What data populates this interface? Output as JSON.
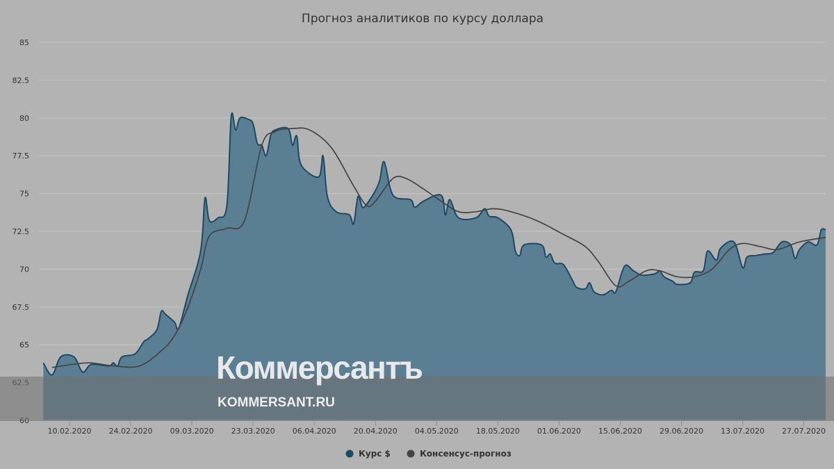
{
  "watermark": {
    "name": "Коммерсантъ",
    "url": "KOMMERSANT.RU"
  },
  "chart_data": {
    "type": "area",
    "title": "Прогноз аналитиков по курсу доллара",
    "xlabel": "",
    "ylabel": "",
    "ylim": [
      60,
      85
    ],
    "y_ticks": [
      "60",
      "62.5",
      "65",
      "67.5",
      "70",
      "72.5",
      "75",
      "77.5",
      "80",
      "82.5",
      "85"
    ],
    "x_range": [
      "2020-02-03",
      "2020-08-01"
    ],
    "x_ticks": [
      "10.02.2020",
      "24.02.2020",
      "09.03.2020",
      "23.03.2020",
      "06.04.2020",
      "20.04.2020",
      "04.05.2020",
      "18.05.2020",
      "01.06.2020",
      "15.06.2020",
      "29.06.2020",
      "13.07.2020",
      "27.07.2020"
    ],
    "grid": true,
    "legend_position": "bottom",
    "colors": {
      "rate_line": "#1b4a66",
      "rate_fill": "#557b90",
      "forecast_line": "#444444",
      "background": "#b3b3b3",
      "grid": "#c6c6c6",
      "watermark_band": "#6f6f6f"
    },
    "series": [
      {
        "name": "Курс $",
        "type": "area",
        "points": [
          [
            "2020-02-04",
            63.8
          ],
          [
            "2020-02-06",
            63.0
          ],
          [
            "2020-02-08",
            64.2
          ],
          [
            "2020-02-11",
            64.2
          ],
          [
            "2020-02-13",
            63.2
          ],
          [
            "2020-02-15",
            63.7
          ],
          [
            "2020-02-19",
            63.6
          ],
          [
            "2020-02-20",
            63.8
          ],
          [
            "2020-02-21",
            63.6
          ],
          [
            "2020-02-22",
            64.2
          ],
          [
            "2020-02-25",
            64.4
          ],
          [
            "2020-02-27",
            65.2
          ],
          [
            "2020-02-28",
            65.4
          ],
          [
            "2020-03-01",
            66.0
          ],
          [
            "2020-03-02",
            67.2
          ],
          [
            "2020-03-03",
            67.0
          ],
          [
            "2020-03-05",
            66.5
          ],
          [
            "2020-03-06",
            66.1
          ],
          [
            "2020-03-08",
            68.2
          ],
          [
            "2020-03-11",
            71.2
          ],
          [
            "2020-03-12",
            74.7
          ],
          [
            "2020-03-13",
            73.2
          ],
          [
            "2020-03-15",
            73.4
          ],
          [
            "2020-03-17",
            74.2
          ],
          [
            "2020-03-18",
            80.1
          ],
          [
            "2020-03-19",
            79.2
          ],
          [
            "2020-03-20",
            80.0
          ],
          [
            "2020-03-22",
            79.9
          ],
          [
            "2020-03-23",
            79.6
          ],
          [
            "2020-03-24",
            78.3
          ],
          [
            "2020-03-25",
            78.2
          ],
          [
            "2020-03-26",
            77.5
          ],
          [
            "2020-03-27",
            78.8
          ],
          [
            "2020-03-28",
            79.2
          ],
          [
            "2020-03-31",
            79.3
          ],
          [
            "2020-04-01",
            78.2
          ],
          [
            "2020-04-02",
            78.8
          ],
          [
            "2020-04-03",
            76.9
          ],
          [
            "2020-04-07",
            76.1
          ],
          [
            "2020-04-08",
            77.5
          ],
          [
            "2020-04-09",
            74.8
          ],
          [
            "2020-04-11",
            73.8
          ],
          [
            "2020-04-14",
            73.6
          ],
          [
            "2020-04-15",
            73.0
          ],
          [
            "2020-04-16",
            74.8
          ],
          [
            "2020-04-17",
            74.1
          ],
          [
            "2020-04-18",
            74.3
          ],
          [
            "2020-04-20",
            75.2
          ],
          [
            "2020-04-21",
            75.9
          ],
          [
            "2020-04-22",
            77.1
          ],
          [
            "2020-04-24",
            74.9
          ],
          [
            "2020-04-28",
            74.6
          ],
          [
            "2020-04-29",
            74.1
          ],
          [
            "2020-05-01",
            74.5
          ],
          [
            "2020-05-05",
            74.9
          ],
          [
            "2020-05-06",
            73.6
          ],
          [
            "2020-05-07",
            74.6
          ],
          [
            "2020-05-09",
            73.4
          ],
          [
            "2020-05-13",
            73.4
          ],
          [
            "2020-05-15",
            74.0
          ],
          [
            "2020-05-16",
            73.5
          ],
          [
            "2020-05-18",
            73.4
          ],
          [
            "2020-05-21",
            72.6
          ],
          [
            "2020-05-22",
            71.2
          ],
          [
            "2020-05-23",
            70.9
          ],
          [
            "2020-05-24",
            71.6
          ],
          [
            "2020-05-28",
            71.6
          ],
          [
            "2020-05-29",
            70.8
          ],
          [
            "2020-05-30",
            71.0
          ],
          [
            "2020-05-31",
            70.4
          ],
          [
            "2020-06-02",
            70.3
          ],
          [
            "2020-06-04",
            69.3
          ],
          [
            "2020-06-05",
            68.8
          ],
          [
            "2020-06-07",
            68.7
          ],
          [
            "2020-06-08",
            69.1
          ],
          [
            "2020-06-09",
            68.5
          ],
          [
            "2020-06-11",
            68.3
          ],
          [
            "2020-06-13",
            68.6
          ],
          [
            "2020-06-14",
            68.5
          ],
          [
            "2020-06-16",
            70.2
          ],
          [
            "2020-06-18",
            69.9
          ],
          [
            "2020-06-20",
            69.6
          ],
          [
            "2020-06-23",
            69.7
          ],
          [
            "2020-06-24",
            69.9
          ],
          [
            "2020-06-25",
            69.5
          ],
          [
            "2020-06-27",
            69.2
          ],
          [
            "2020-06-28",
            69.0
          ],
          [
            "2020-07-01",
            69.1
          ],
          [
            "2020-07-02",
            69.8
          ],
          [
            "2020-07-04",
            69.9
          ],
          [
            "2020-07-05",
            71.2
          ],
          [
            "2020-07-07",
            70.6
          ],
          [
            "2020-07-08",
            71.4
          ],
          [
            "2020-07-11",
            71.8
          ],
          [
            "2020-07-13",
            70.1
          ],
          [
            "2020-07-14",
            70.8
          ],
          [
            "2020-07-16",
            70.9
          ],
          [
            "2020-07-18",
            71.0
          ],
          [
            "2020-07-20",
            71.1
          ],
          [
            "2020-07-22",
            71.8
          ],
          [
            "2020-07-24",
            71.6
          ],
          [
            "2020-07-25",
            70.7
          ],
          [
            "2020-07-26",
            71.3
          ],
          [
            "2020-07-28",
            71.8
          ],
          [
            "2020-07-30",
            71.6
          ],
          [
            "2020-07-31",
            72.6
          ],
          [
            "2020-08-01",
            72.6
          ]
        ]
      },
      {
        "name": "Консенсус-прогноз",
        "type": "line",
        "points": [
          [
            "2020-02-06",
            63.5
          ],
          [
            "2020-02-14",
            63.8
          ],
          [
            "2020-02-20",
            63.6
          ],
          [
            "2020-02-26",
            63.6
          ],
          [
            "2020-03-02",
            64.6
          ],
          [
            "2020-03-05",
            65.6
          ],
          [
            "2020-03-08",
            67.4
          ],
          [
            "2020-03-11",
            70.0
          ],
          [
            "2020-03-13",
            72.2
          ],
          [
            "2020-03-17",
            72.7
          ],
          [
            "2020-03-21",
            73.2
          ],
          [
            "2020-03-25",
            78.2
          ],
          [
            "2020-03-28",
            79.1
          ],
          [
            "2020-04-01",
            79.3
          ],
          [
            "2020-04-05",
            79.2
          ],
          [
            "2020-04-10",
            78.0
          ],
          [
            "2020-04-15",
            75.5
          ],
          [
            "2020-04-18",
            74.2
          ],
          [
            "2020-04-20",
            74.5
          ],
          [
            "2020-04-24",
            76.0
          ],
          [
            "2020-04-27",
            76.0
          ],
          [
            "2020-05-01",
            75.3
          ],
          [
            "2020-05-05",
            74.5
          ],
          [
            "2020-05-09",
            73.8
          ],
          [
            "2020-05-13",
            73.8
          ],
          [
            "2020-05-17",
            74.0
          ],
          [
            "2020-05-21",
            73.8
          ],
          [
            "2020-05-27",
            73.2
          ],
          [
            "2020-06-02",
            72.3
          ],
          [
            "2020-06-07",
            71.5
          ],
          [
            "2020-06-10",
            70.5
          ],
          [
            "2020-06-14",
            68.9
          ],
          [
            "2020-06-17",
            69.2
          ],
          [
            "2020-06-21",
            69.9
          ],
          [
            "2020-06-24",
            69.9
          ],
          [
            "2020-06-28",
            69.5
          ],
          [
            "2020-07-02",
            69.5
          ],
          [
            "2020-07-06",
            70.0
          ],
          [
            "2020-07-10",
            71.3
          ],
          [
            "2020-07-13",
            71.7
          ],
          [
            "2020-07-17",
            71.5
          ],
          [
            "2020-07-21",
            71.3
          ],
          [
            "2020-07-26",
            71.8
          ],
          [
            "2020-08-01",
            72.1
          ]
        ]
      }
    ]
  }
}
